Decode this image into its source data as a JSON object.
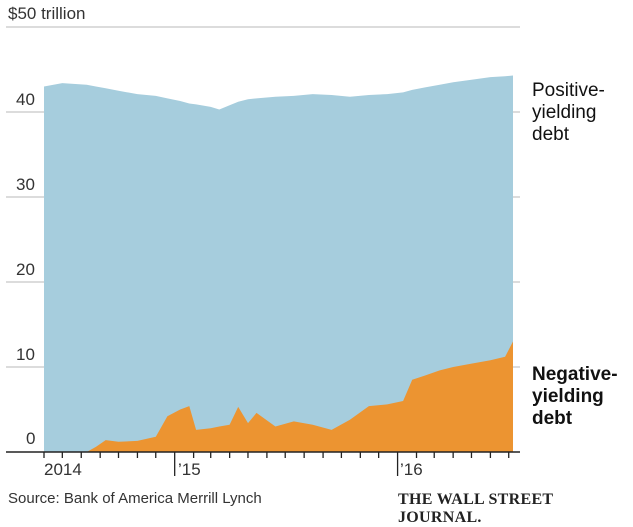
{
  "chart_data": {
    "type": "area",
    "stacked": true,
    "ylabel_unit": "$50 trillion",
    "ylim": [
      0,
      50
    ],
    "yticks": [
      {
        "value": 50,
        "label": "$50 trillion"
      },
      {
        "value": 40,
        "label": "40"
      },
      {
        "value": 30,
        "label": "30"
      },
      {
        "value": 20,
        "label": "20"
      },
      {
        "value": 10,
        "label": "10"
      },
      {
        "value": 0,
        "label": "0"
      }
    ],
    "xlim": [
      "2014-06-01",
      "2016-07-08"
    ],
    "xtick_labels": [
      {
        "date": "2014-06-01",
        "label": "2014"
      },
      {
        "date": "2015-01-01",
        "label": "’15"
      },
      {
        "date": "2016-01-01",
        "label": "’16"
      }
    ],
    "grid": true,
    "dates": [
      "2014-06-01",
      "2014-07-01",
      "2014-08-10",
      "2014-08-25",
      "2014-09-10",
      "2014-10-01",
      "2014-11-01",
      "2014-12-01",
      "2014-12-20",
      "2015-01-10",
      "2015-01-25",
      "2015-02-05",
      "2015-03-01",
      "2015-03-15",
      "2015-04-01",
      "2015-04-15",
      "2015-05-01",
      "2015-05-15",
      "2015-06-15",
      "2015-07-15",
      "2015-08-15",
      "2015-09-15",
      "2015-10-15",
      "2015-11-15",
      "2015-12-15",
      "2016-01-10",
      "2016-01-25",
      "2016-02-15",
      "2016-03-10",
      "2016-04-01",
      "2016-05-01",
      "2016-06-01",
      "2016-06-25",
      "2016-07-08"
    ],
    "series": [
      {
        "name": "Positive-yielding debt",
        "label_lines": [
          "Positive-",
          "yielding",
          "debt"
        ],
        "color": "#a6cddd",
        "total_values": [
          43.0,
          43.4,
          43.2,
          43.0,
          42.8,
          42.5,
          42.1,
          41.9,
          41.6,
          41.3,
          41.0,
          40.9,
          40.6,
          40.3,
          40.8,
          41.2,
          41.5,
          41.6,
          41.8,
          41.9,
          42.1,
          42.0,
          41.8,
          42.0,
          42.1,
          42.3,
          42.6,
          42.9,
          43.2,
          43.5,
          43.8,
          44.1,
          44.2,
          44.3
        ]
      },
      {
        "name": "Negative-yielding debt",
        "label_lines": [
          "Negative-",
          "yielding",
          "debt"
        ],
        "color": "#ec9431",
        "values": [
          0,
          0,
          0,
          0.6,
          1.4,
          1.2,
          1.3,
          1.8,
          4.2,
          5.0,
          5.4,
          2.6,
          2.8,
          3.0,
          3.2,
          5.3,
          3.4,
          4.6,
          3.0,
          3.6,
          3.2,
          2.6,
          3.8,
          5.4,
          5.6,
          6.0,
          8.5,
          9.0,
          9.6,
          10.0,
          10.4,
          10.8,
          11.2,
          13.0
        ]
      }
    ]
  },
  "footer": {
    "source": "Source: Bank of America Merrill Lynch",
    "publisher": "THE WALL STREET JOURNAL."
  }
}
